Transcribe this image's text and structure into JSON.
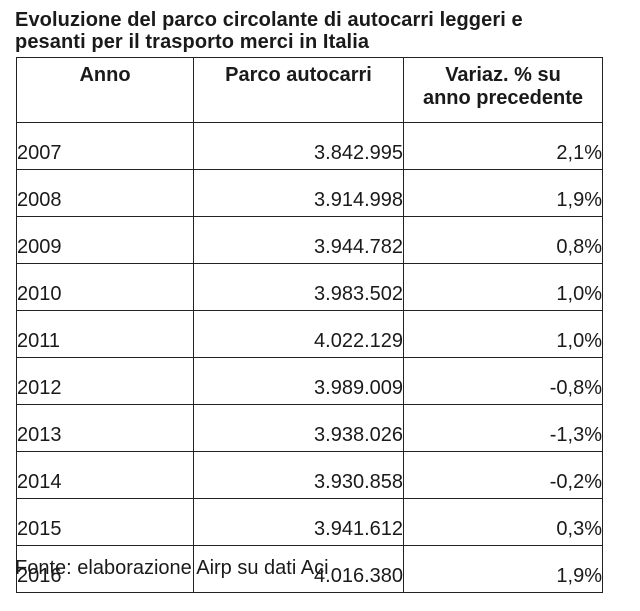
{
  "title": {
    "line1": "Evoluzione del parco circolante di autocarri leggeri e",
    "line2": "pesanti per il trasporto merci in Italia"
  },
  "table": {
    "headers": {
      "year": "Anno",
      "fleet": "Parco autocarri",
      "variation_line1": "Variaz. % su",
      "variation_line2": "anno precedente"
    },
    "rows": [
      {
        "year": "2007",
        "fleet": "3.842.995",
        "variation": "2,1%"
      },
      {
        "year": "2008",
        "fleet": "3.914.998",
        "variation": "1,9%"
      },
      {
        "year": "2009",
        "fleet": "3.944.782",
        "variation": "0,8%"
      },
      {
        "year": "2010",
        "fleet": "3.983.502",
        "variation": "1,0%"
      },
      {
        "year": "2011",
        "fleet": "4.022.129",
        "variation": "1,0%"
      },
      {
        "year": "2012",
        "fleet": "3.989.009",
        "variation": "-0,8%"
      },
      {
        "year": "2013",
        "fleet": "3.938.026",
        "variation": "-1,3%"
      },
      {
        "year": "2014",
        "fleet": "3.930.858",
        "variation": "-0,2%"
      },
      {
        "year": "2015",
        "fleet": "3.941.612",
        "variation": "0,3%"
      },
      {
        "year": "2016",
        "fleet": "4.016.380",
        "variation": "1,9%"
      }
    ]
  },
  "source": "Fonte: elaborazione Airp su dati Aci"
}
